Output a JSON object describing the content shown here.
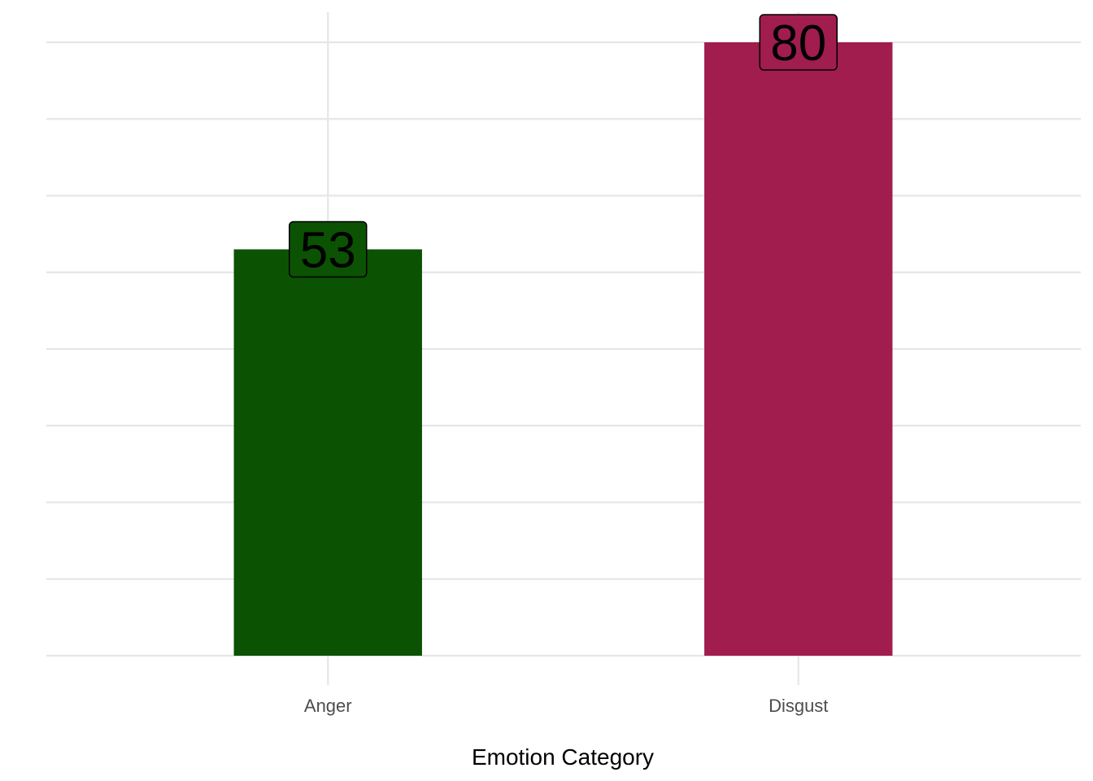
{
  "chart_data": {
    "type": "bar",
    "title": "",
    "xlabel": "Emotion Category",
    "ylabel": "",
    "categories": [
      "Anger",
      "Disgust"
    ],
    "values": [
      53,
      80
    ],
    "colors": [
      "#0b5203",
      "#a01d4d"
    ],
    "data_labels": [
      "53",
      "80"
    ],
    "ylim": [
      0,
      80
    ],
    "y_ticks_shown": false,
    "grid": true,
    "legend": "none"
  }
}
